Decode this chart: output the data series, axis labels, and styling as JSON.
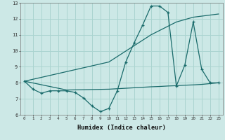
{
  "xlabel": "Humidex (Indice chaleur)",
  "bg_color": "#cce8e6",
  "grid_color": "#aad4d0",
  "line_color": "#1a6b6b",
  "xlim": [
    -0.5,
    23.5
  ],
  "ylim": [
    6,
    13
  ],
  "xticks": [
    0,
    1,
    2,
    3,
    4,
    5,
    6,
    7,
    8,
    9,
    10,
    11,
    12,
    13,
    14,
    15,
    16,
    17,
    18,
    19,
    20,
    21,
    22,
    23
  ],
  "yticks": [
    6,
    7,
    8,
    9,
    10,
    11,
    12,
    13
  ],
  "series1_x": [
    0,
    1,
    2,
    3,
    4,
    5,
    6,
    7,
    8,
    9,
    10,
    11,
    12,
    13,
    14,
    15,
    16,
    17,
    18,
    19,
    20,
    21,
    22,
    23
  ],
  "series1_y": [
    8.1,
    7.6,
    7.35,
    7.5,
    7.5,
    7.5,
    7.4,
    7.05,
    6.55,
    6.2,
    6.4,
    7.5,
    9.3,
    10.5,
    11.6,
    12.8,
    12.8,
    12.4,
    7.8,
    9.1,
    11.8,
    8.85,
    8.0,
    8.0
  ],
  "series2_x": [
    0,
    5,
    10,
    15,
    16,
    17,
    18,
    19,
    20,
    21,
    22,
    23
  ],
  "series2_y": [
    8.1,
    7.55,
    7.6,
    7.75,
    7.77,
    7.8,
    7.82,
    7.85,
    7.87,
    7.9,
    7.95,
    8.0
  ],
  "series3_x": [
    0,
    10,
    15,
    18,
    20,
    23
  ],
  "series3_y": [
    8.1,
    9.3,
    11.0,
    11.8,
    12.1,
    12.3
  ]
}
